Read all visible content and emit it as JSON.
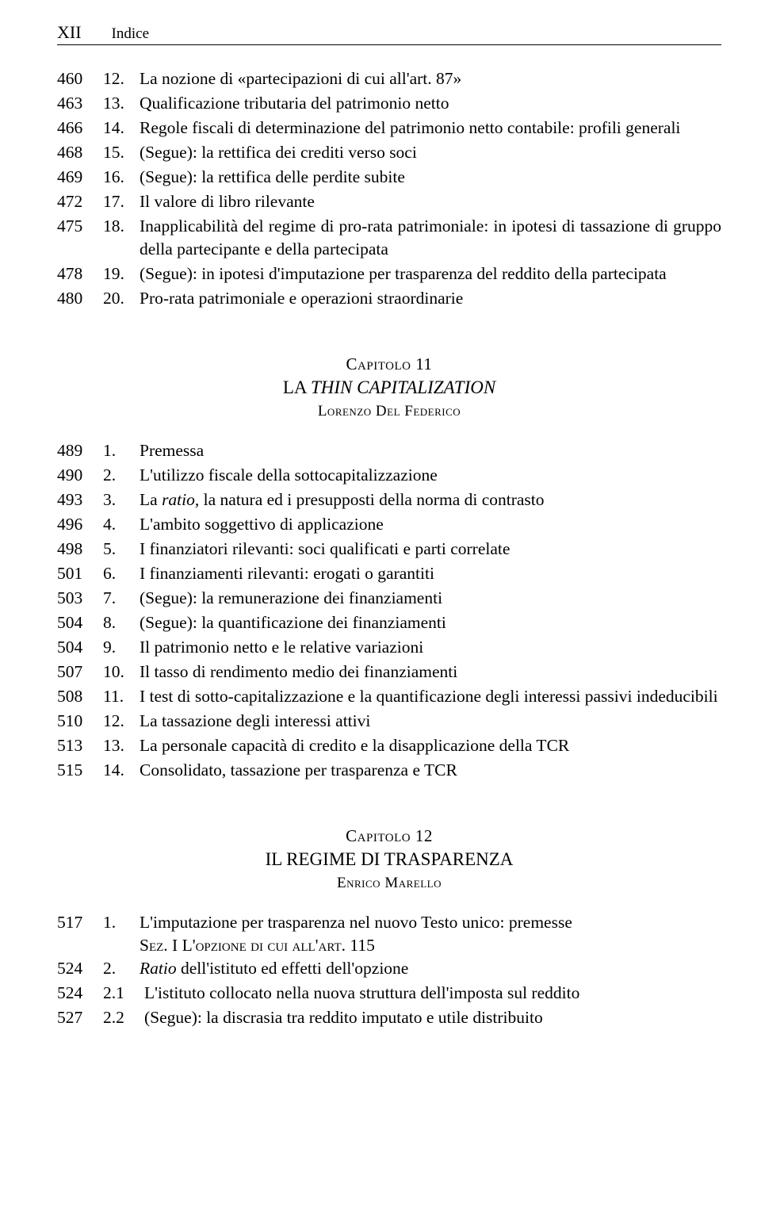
{
  "running_head": {
    "page_num": "XII",
    "title": "Indice"
  },
  "section_a": [
    {
      "pg": "460",
      "num": "12.",
      "txt": "La nozione di «partecipazioni di cui all'art. 87»"
    },
    {
      "pg": "463",
      "num": "13.",
      "txt": "Qualificazione tributaria del patrimonio netto"
    },
    {
      "pg": "466",
      "num": "14.",
      "txt": "Regole fiscali di determinazione del patrimonio netto contabile: profili generali"
    },
    {
      "pg": "468",
      "num": "15.",
      "txt": "(Segue): la rettifica dei crediti verso soci"
    },
    {
      "pg": "469",
      "num": "16.",
      "txt": "(Segue): la rettifica delle perdite subite"
    },
    {
      "pg": "472",
      "num": "17.",
      "txt": "Il valore di libro rilevante"
    },
    {
      "pg": "475",
      "num": "18.",
      "txt": "Inapplicabilità del regime di pro-rata patrimoniale: in ipotesi di tassazione di gruppo della partecipante e della partecipata"
    },
    {
      "pg": "478",
      "num": "19.",
      "txt": "(Segue): in ipotesi d'imputazione per trasparenza del reddito della partecipata"
    },
    {
      "pg": "480",
      "num": "20.",
      "txt": "Pro-rata patrimoniale e operazioni straordinarie"
    }
  ],
  "chapter11": {
    "over": "Capitolo",
    "over_num": "11",
    "title_pre": "LA ",
    "title_ital": "THIN CAPITALIZATION",
    "author": "Lorenzo Del Federico"
  },
  "section_b": [
    {
      "pg": "489",
      "num": "1.",
      "txt": "Premessa"
    },
    {
      "pg": "490",
      "num": "2.",
      "txt": "L'utilizzo fiscale della sottocapitalizzazione"
    },
    {
      "pg": "493",
      "num": "3.",
      "txt_pre": "La ",
      "txt_ital": "ratio",
      "txt_post": ", la natura ed i presupposti della norma di contrasto"
    },
    {
      "pg": "496",
      "num": "4.",
      "txt": "L'ambito soggettivo di applicazione"
    },
    {
      "pg": "498",
      "num": "5.",
      "txt": "I finanziatori rilevanti: soci qualificati e parti correlate"
    },
    {
      "pg": "501",
      "num": "6.",
      "txt": "I finanziamenti rilevanti: erogati o garantiti"
    },
    {
      "pg": "503",
      "num": "7.",
      "txt": "(Segue): la remunerazione dei finanziamenti"
    },
    {
      "pg": "504",
      "num": "8.",
      "txt": "(Segue): la quantificazione dei finanziamenti"
    },
    {
      "pg": "504",
      "num": "9.",
      "txt": "Il patrimonio netto e le relative variazioni"
    },
    {
      "pg": "507",
      "num": "10.",
      "txt": "Il tasso di rendimento medio dei finanziamenti"
    },
    {
      "pg": "508",
      "num": "11.",
      "txt": "I test di sotto-capitalizzazione e la quantificazione degli interessi passivi indeducibili"
    },
    {
      "pg": "510",
      "num": "12.",
      "txt": "La tassazione degli interessi attivi"
    },
    {
      "pg": "513",
      "num": "13.",
      "txt": "La personale capacità di credito e la disapplicazione della TCR"
    },
    {
      "pg": "515",
      "num": "14.",
      "txt": "Consolidato, tassazione per trasparenza e TCR"
    }
  ],
  "chapter12": {
    "over": "Capitolo",
    "over_num": "12",
    "title": "IL REGIME DI TRASPARENZA",
    "author": "Enrico Marello"
  },
  "section_c_first": {
    "pg": "517",
    "num": "1.",
    "txt": "L'imputazione per trasparenza nel nuovo Testo unico: premesse"
  },
  "sec_line": {
    "pre": "Sez. I L'",
    "sc": "opzione di cui all'art. ",
    "post": "115"
  },
  "section_c_rest": [
    {
      "pg": "524",
      "num": "2.",
      "txt_ital": "Ratio",
      "txt_post": " dell'istituto ed effetti dell'opzione"
    },
    {
      "pg": "524",
      "num": "2.1",
      "txt": "L'istituto collocato nella nuova struttura dell'imposta sul reddito"
    },
    {
      "pg": "527",
      "num": "2.2",
      "txt": "(Segue): la discrasia tra reddito imputato e utile distribuito"
    }
  ]
}
